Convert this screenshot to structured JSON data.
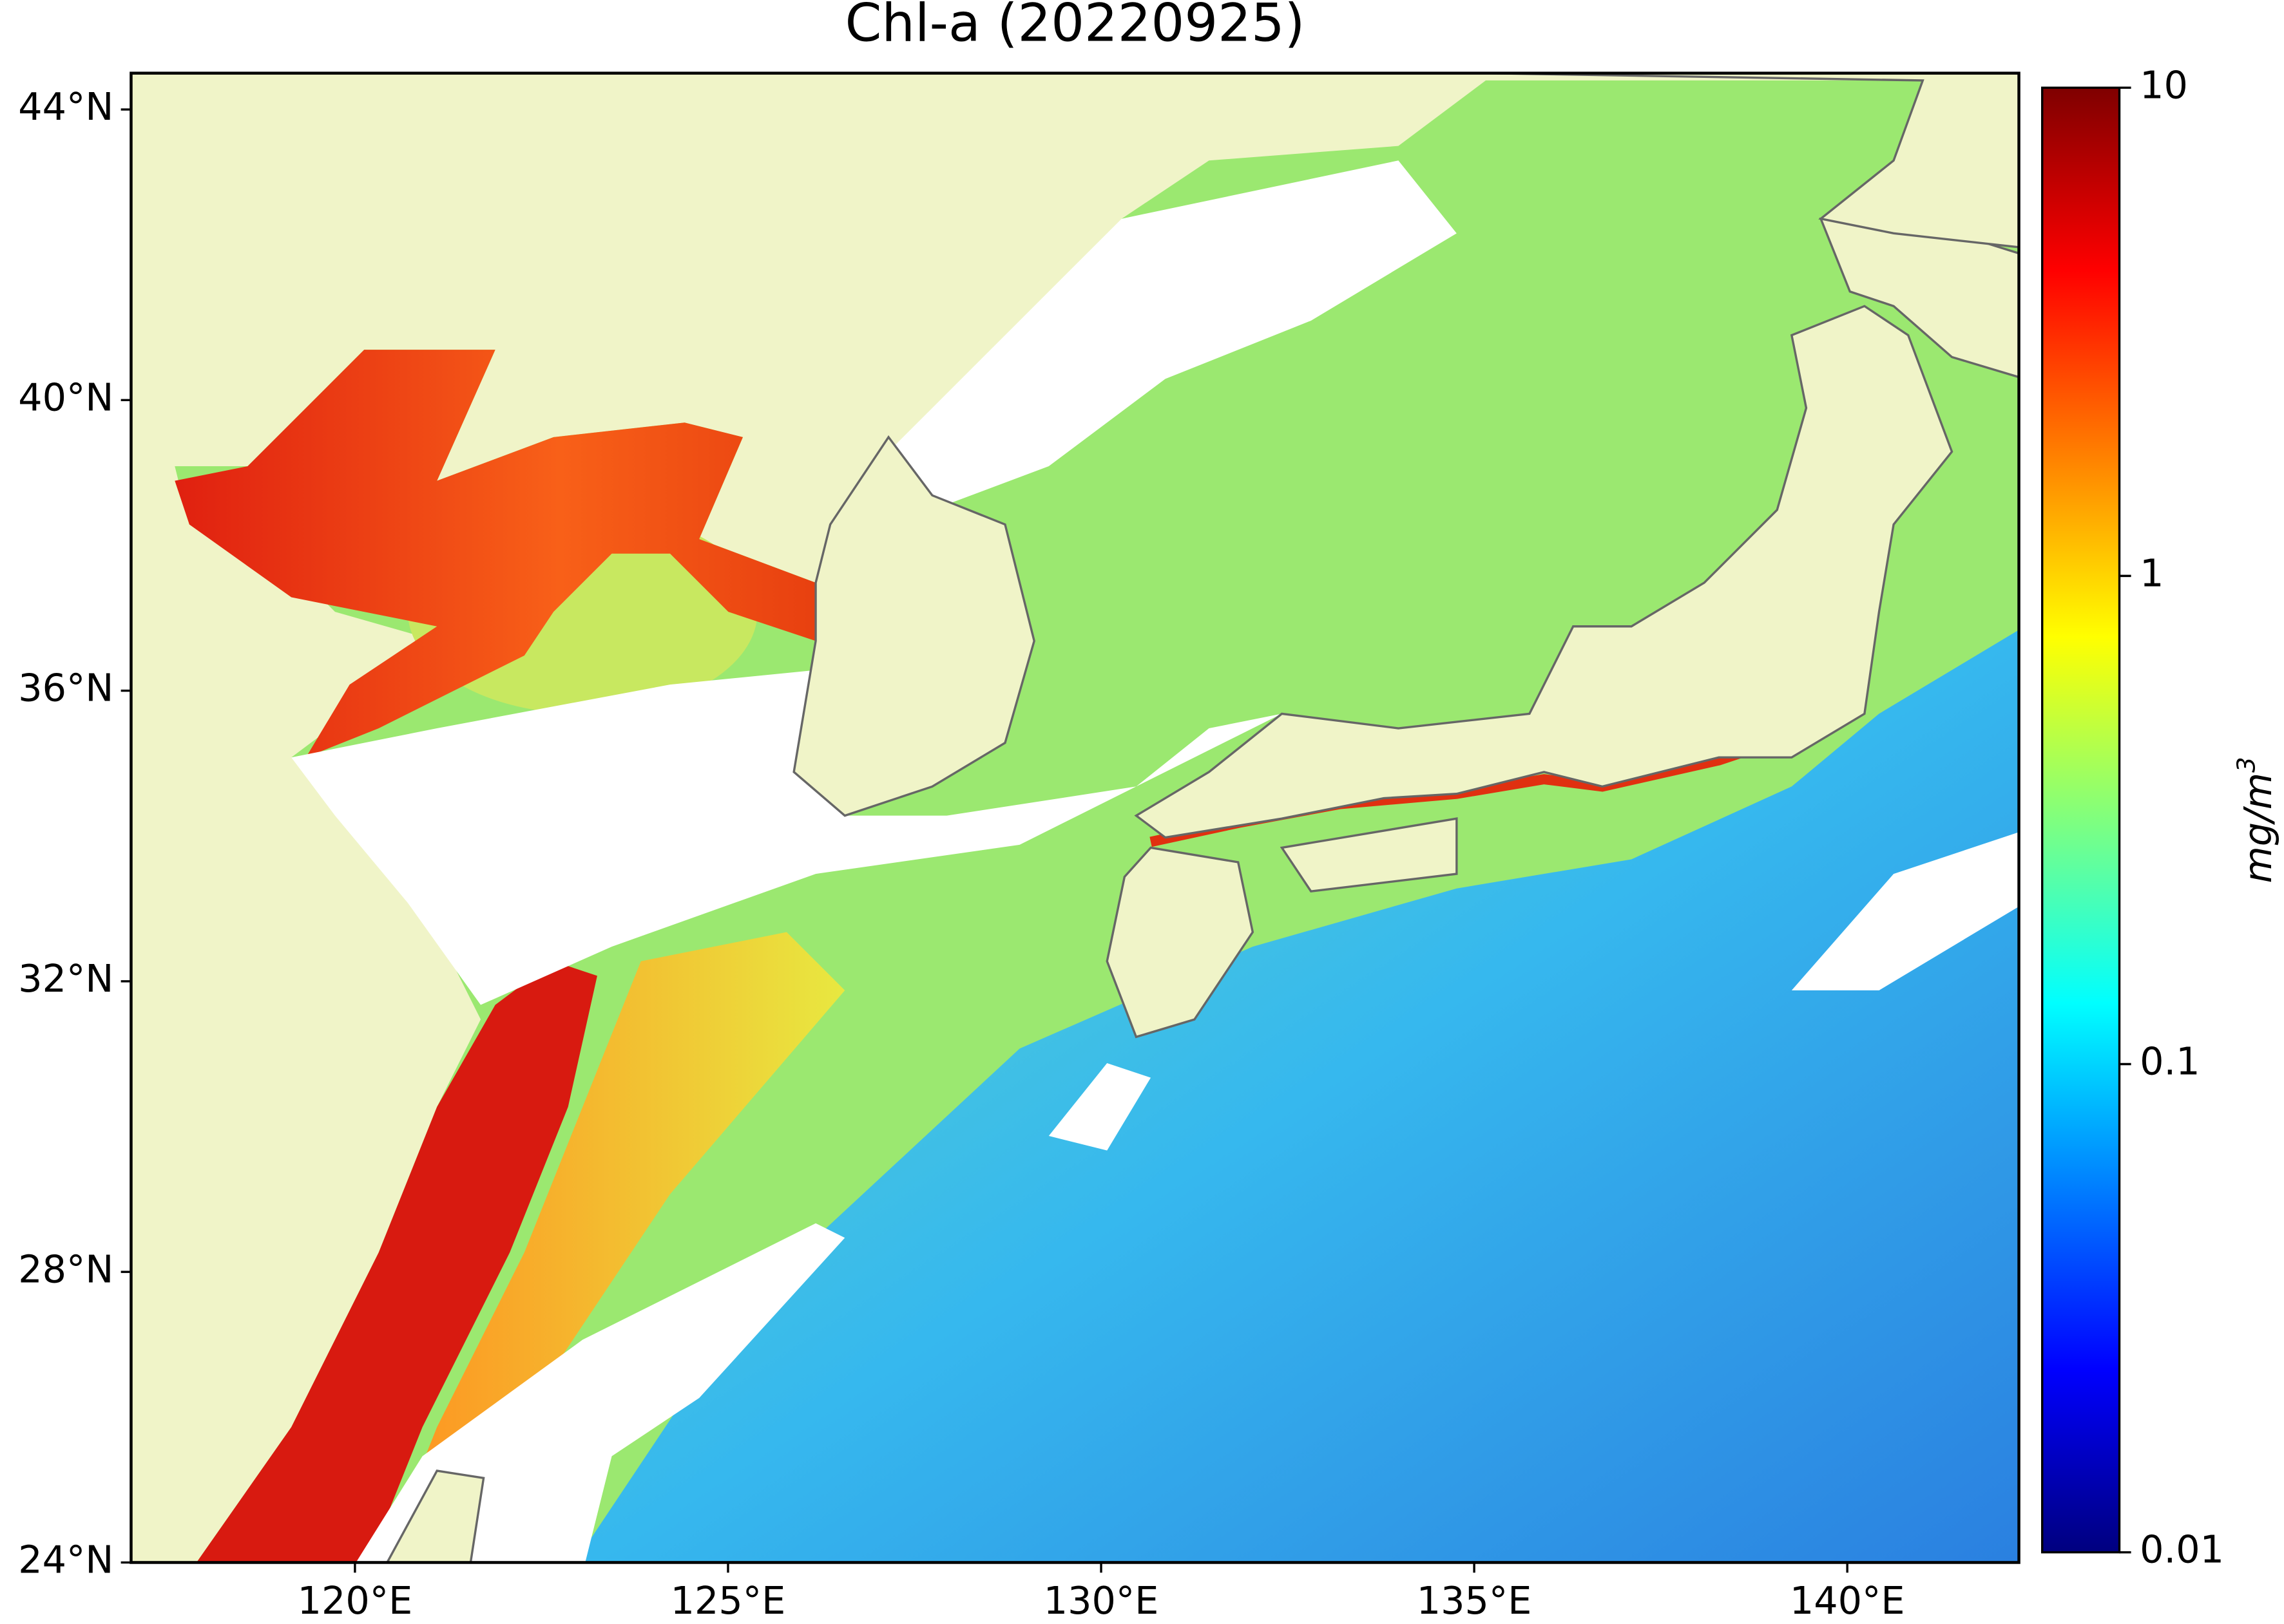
{
  "title": "Chl-a (20220925)",
  "map": {
    "type": "map",
    "xlim": [
      117,
      142.3
    ],
    "ylim": [
      24,
      44.5
    ],
    "xticks": [
      {
        "value": 120,
        "label": "120°E"
      },
      {
        "value": 125,
        "label": "125°E"
      },
      {
        "value": 130,
        "label": "130°E"
      },
      {
        "value": 135,
        "label": "135°E"
      },
      {
        "value": 140,
        "label": "140°E"
      }
    ],
    "yticks": [
      {
        "value": 24,
        "label": "24°N"
      },
      {
        "value": 28,
        "label": "28°N"
      },
      {
        "value": 32,
        "label": "32°N"
      },
      {
        "value": 36,
        "label": "36°N"
      },
      {
        "value": 40,
        "label": "40°N"
      },
      {
        "value": 44,
        "label": "44°N"
      }
    ],
    "land_color": "#f0f4c8"
  },
  "colorbar": {
    "scale": "log",
    "lim": [
      0.01,
      10
    ],
    "ticks": [
      0.01,
      0.1,
      1,
      10
    ],
    "label": {
      "base": "mg/m",
      "sup": "3"
    },
    "colors": [
      "#00007f",
      "#0000ff",
      "#007fff",
      "#00ffff",
      "#7fff7f",
      "#ffff00",
      "#ff7f00",
      "#ff0000",
      "#7f0000"
    ]
  }
}
